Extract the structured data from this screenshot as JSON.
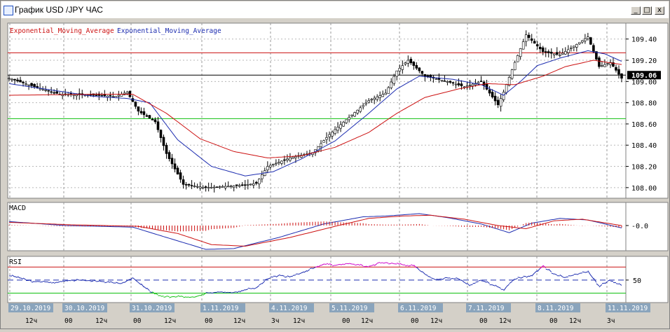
{
  "window": {
    "title": "График USD /JPY ЧАС",
    "buttons": {
      "minimize": "_",
      "maximize": "□",
      "close": "x"
    }
  },
  "colors": {
    "plot_bg": "#ffffff",
    "price_line": "#000000",
    "ema_fast": "#1c2cb0",
    "ema_slow": "#cc1010",
    "resistance_line": "#cc1010",
    "support_line": "#10c010",
    "rsi_upper_zone": "#cc00cc",
    "rsi_lower_zone": "#10c010",
    "macd_line": "#1c2cb0",
    "signal_line": "#cc1010",
    "histogram": "#cc1010",
    "date_label_bg": "#8aa4bc",
    "current_price_bg": "#000000"
  },
  "chart_data": [
    {
      "type": "candlestick",
      "panel": "price",
      "legend": [
        "Exponential_Moving_Average",
        "Exponential_Moving_Average"
      ],
      "y_ticks": [
        "109.40",
        "109.20",
        "109.00",
        "108.80",
        "108.60",
        "108.40",
        "108.20",
        "108.00"
      ],
      "ylim": [
        107.9,
        109.55
      ],
      "current_price": "109.06",
      "current_price_value": 109.06,
      "resistance_level": 109.27,
      "support_level": 108.65,
      "grid": true,
      "ohlc_close_keypoints": [
        [
          0,
          109.03
        ],
        [
          8,
          108.96
        ],
        [
          18,
          108.88
        ],
        [
          30,
          108.87
        ],
        [
          38,
          108.86
        ],
        [
          42,
          108.9
        ],
        [
          46,
          108.72
        ],
        [
          52,
          108.62
        ],
        [
          56,
          108.32
        ],
        [
          62,
          108.03
        ],
        [
          70,
          108.0
        ],
        [
          76,
          108.01
        ],
        [
          82,
          108.02
        ],
        [
          88,
          108.04
        ],
        [
          92,
          108.2
        ],
        [
          100,
          108.28
        ],
        [
          108,
          108.33
        ],
        [
          114,
          108.5
        ],
        [
          120,
          108.64
        ],
        [
          128,
          108.82
        ],
        [
          134,
          108.89
        ],
        [
          138,
          109.1
        ],
        [
          142,
          109.2
        ],
        [
          148,
          109.05
        ],
        [
          156,
          109.0
        ],
        [
          162,
          108.95
        ],
        [
          168,
          109.0
        ],
        [
          174,
          108.78
        ],
        [
          176,
          108.9
        ],
        [
          180,
          109.18
        ],
        [
          184,
          109.44
        ],
        [
          190,
          109.28
        ],
        [
          196,
          109.25
        ],
        [
          202,
          109.35
        ],
        [
          206,
          109.42
        ],
        [
          210,
          109.14
        ],
        [
          214,
          109.18
        ],
        [
          218,
          109.03
        ]
      ],
      "ema_fast_keypoints": [
        [
          0,
          108.98
        ],
        [
          30,
          108.86
        ],
        [
          42,
          108.84
        ],
        [
          50,
          108.8
        ],
        [
          60,
          108.45
        ],
        [
          72,
          108.2
        ],
        [
          84,
          108.11
        ],
        [
          94,
          108.15
        ],
        [
          104,
          108.27
        ],
        [
          116,
          108.44
        ],
        [
          128,
          108.7
        ],
        [
          138,
          108.93
        ],
        [
          146,
          109.05
        ],
        [
          158,
          109.02
        ],
        [
          168,
          108.97
        ],
        [
          176,
          108.87
        ],
        [
          182,
          109.0
        ],
        [
          188,
          109.15
        ],
        [
          196,
          109.22
        ],
        [
          206,
          109.29
        ],
        [
          212,
          109.26
        ],
        [
          218,
          109.19
        ]
      ],
      "ema_slow_keypoints": [
        [
          0,
          108.87
        ],
        [
          30,
          108.88
        ],
        [
          44,
          108.88
        ],
        [
          56,
          108.7
        ],
        [
          68,
          108.46
        ],
        [
          80,
          108.34
        ],
        [
          92,
          108.28
        ],
        [
          104,
          108.3
        ],
        [
          116,
          108.38
        ],
        [
          128,
          108.52
        ],
        [
          138,
          108.7
        ],
        [
          148,
          108.85
        ],
        [
          160,
          108.93
        ],
        [
          170,
          108.98
        ],
        [
          180,
          108.97
        ],
        [
          190,
          109.05
        ],
        [
          198,
          109.14
        ],
        [
          208,
          109.2
        ],
        [
          218,
          109.16
        ]
      ]
    },
    {
      "type": "line",
      "panel": "macd",
      "label": "MACD",
      "y_ticks": [
        "-0.0"
      ],
      "ylim": [
        -0.35,
        0.2
      ],
      "series": [
        {
          "role": "macd",
          "values_keypoints": [
            [
              0,
              0.05
            ],
            [
              20,
              0.0
            ],
            [
              44,
              -0.02
            ],
            [
              56,
              -0.15
            ],
            [
              70,
              -0.3
            ],
            [
              80,
              -0.29
            ],
            [
              96,
              -0.15
            ],
            [
              112,
              0.02
            ],
            [
              126,
              0.11
            ],
            [
              134,
              0.12
            ],
            [
              146,
              0.15
            ],
            [
              156,
              0.1
            ],
            [
              168,
              0.02
            ],
            [
              178,
              -0.09
            ],
            [
              186,
              0.03
            ],
            [
              196,
              0.09
            ],
            [
              206,
              0.07
            ],
            [
              218,
              -0.03
            ]
          ]
        },
        {
          "role": "signal",
          "values_keypoints": [
            [
              0,
              0.04
            ],
            [
              22,
              0.01
            ],
            [
              46,
              -0.01
            ],
            [
              60,
              -0.1
            ],
            [
              72,
              -0.24
            ],
            [
              84,
              -0.26
            ],
            [
              100,
              -0.15
            ],
            [
              116,
              -0.01
            ],
            [
              128,
              0.09
            ],
            [
              140,
              0.12
            ],
            [
              150,
              0.13
            ],
            [
              162,
              0.08
            ],
            [
              174,
              0.0
            ],
            [
              184,
              -0.04
            ],
            [
              194,
              0.06
            ],
            [
              204,
              0.08
            ],
            [
              218,
              0.0
            ]
          ]
        }
      ]
    },
    {
      "type": "line",
      "panel": "rsi",
      "label": "RSI",
      "y_ticks": [
        "50"
      ],
      "ylim": [
        12,
        90
      ],
      "upper_level": 72,
      "lower_level": 28,
      "values_keypoints": [
        [
          0,
          58
        ],
        [
          8,
          48
        ],
        [
          16,
          46
        ],
        [
          24,
          50
        ],
        [
          32,
          48
        ],
        [
          40,
          44
        ],
        [
          44,
          54
        ],
        [
          48,
          38
        ],
        [
          52,
          26
        ],
        [
          56,
          22
        ],
        [
          62,
          22
        ],
        [
          66,
          21
        ],
        [
          70,
          28
        ],
        [
          76,
          30
        ],
        [
          80,
          29
        ],
        [
          84,
          34
        ],
        [
          88,
          37
        ],
        [
          92,
          52
        ],
        [
          96,
          58
        ],
        [
          100,
          55
        ],
        [
          104,
          62
        ],
        [
          108,
          70
        ],
        [
          112,
          77
        ],
        [
          116,
          75
        ],
        [
          120,
          78
        ],
        [
          124,
          76
        ],
        [
          128,
          72
        ],
        [
          132,
          80
        ],
        [
          136,
          78
        ],
        [
          140,
          76
        ],
        [
          144,
          74
        ],
        [
          148,
          60
        ],
        [
          152,
          50
        ],
        [
          156,
          54
        ],
        [
          160,
          52
        ],
        [
          164,
          40
        ],
        [
          168,
          50
        ],
        [
          172,
          42
        ],
        [
          176,
          34
        ],
        [
          180,
          52
        ],
        [
          186,
          58
        ],
        [
          190,
          74
        ],
        [
          194,
          60
        ],
        [
          198,
          54
        ],
        [
          202,
          60
        ],
        [
          206,
          64
        ],
        [
          210,
          40
        ],
        [
          214,
          50
        ],
        [
          218,
          41
        ]
      ]
    }
  ],
  "time_axis": {
    "dates": [
      "29.10.2019",
      "30.10.2019",
      "31.10.2019",
      "1.11.2019",
      "4.11.2019",
      "5.11.2019",
      "6.11.2019",
      "7.11.2019",
      "8.11.2019",
      "11.11.2019"
    ],
    "hours": [
      "12ч",
      "00",
      "12ч",
      "00",
      "12ч",
      "00",
      "12ч",
      "3ч",
      "12ч",
      "00",
      "12ч",
      "00",
      "12ч",
      "00",
      "12ч",
      "00",
      "12ч",
      "3ч"
    ]
  }
}
